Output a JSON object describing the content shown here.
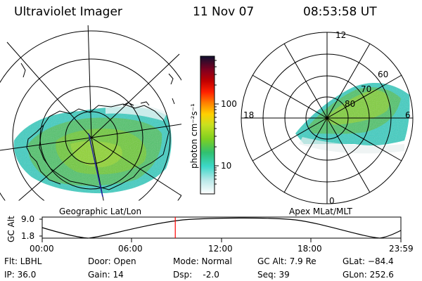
{
  "header": {
    "instrument": "Ultraviolet Imager",
    "date": "11 Nov 07",
    "time": "08:53:58 UT"
  },
  "left_map": {
    "caption": "Geographic Lat/Lon"
  },
  "right_map": {
    "caption": "Apex  MLat/MLT",
    "mlt_labels": {
      "top": "12",
      "left": "18",
      "right": "6",
      "bottom": "0"
    },
    "lat_labels": [
      "60",
      "70",
      "80"
    ]
  },
  "colorbar": {
    "unit_label": "photon cm⁻²s⁻¹",
    "ticks": [
      "100",
      "10"
    ],
    "colors": [
      "#ffffff",
      "#b8e8e8",
      "#3cd8c8",
      "#30c070",
      "#7fd020",
      "#c8e020",
      "#ffd000",
      "#ff8000",
      "#ff2000",
      "#c00000",
      "#800020",
      "#400030",
      "#101030"
    ]
  },
  "orbit_plot": {
    "ylabel": "GC Alt",
    "yticks": [
      "9.0",
      "1.8"
    ],
    "xticks": [
      "00:00",
      "06:00",
      "12:00",
      "18:00",
      "23:59"
    ],
    "current_time_fraction": 0.371,
    "marker_color": "#ff0000"
  },
  "info": {
    "flt": "Flt: LBHL",
    "ip": "IP: 36.0",
    "door": "Door: Open",
    "gain": "Gain: 14",
    "mode": "Mode: Normal",
    "dsp": "Dsp:    -2.0",
    "gcalt": "GC Alt: 7.9 Re",
    "seq": "Seq: 39",
    "glat": "GLat: −84.4",
    "glon": "GLon: 252.6"
  }
}
